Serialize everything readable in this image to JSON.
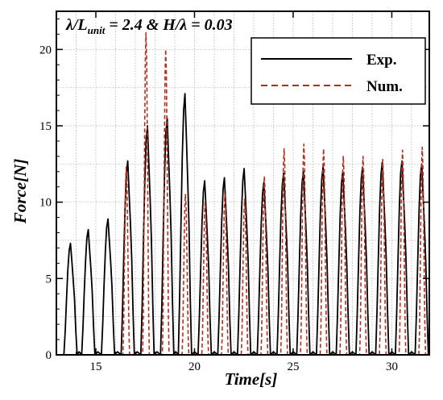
{
  "chart_data": {
    "type": "line",
    "title": "",
    "annotation": {
      "lambda_part": "λ/L",
      "sub": "unit",
      "rest": " = 2.4 & H/λ = 0.03"
    },
    "xlabel": "Time[s]",
    "ylabel": "Force[N]",
    "xlim": [
      13,
      31.9
    ],
    "ylim": [
      0,
      22.5
    ],
    "xticks": [
      15,
      20,
      25,
      30
    ],
    "yticks": [
      0,
      5,
      10,
      15,
      20
    ],
    "grid": true,
    "legend_position": "top-right",
    "colors": {
      "exp": "#000000",
      "num": "#b03020",
      "grid": "#aaaaaa"
    },
    "series": [
      {
        "name": "Exp.",
        "style": "solid",
        "peaks": [
          {
            "t": 13.7,
            "v": 7.3
          },
          {
            "t": 14.6,
            "v": 8.2
          },
          {
            "t": 15.6,
            "v": 8.9
          },
          {
            "t": 16.6,
            "v": 12.7
          },
          {
            "t": 17.6,
            "v": 15.0
          },
          {
            "t": 18.6,
            "v": 15.5
          },
          {
            "t": 19.5,
            "v": 17.1
          },
          {
            "t": 20.5,
            "v": 11.4
          },
          {
            "t": 21.5,
            "v": 11.6
          },
          {
            "t": 22.5,
            "v": 12.2
          },
          {
            "t": 23.5,
            "v": 11.3
          },
          {
            "t": 24.5,
            "v": 11.9
          },
          {
            "t": 25.5,
            "v": 12.0
          },
          {
            "t": 26.5,
            "v": 12.3
          },
          {
            "t": 27.5,
            "v": 12.0
          },
          {
            "t": 28.5,
            "v": 12.3
          },
          {
            "t": 29.5,
            "v": 12.6
          },
          {
            "t": 30.5,
            "v": 12.7
          },
          {
            "t": 31.5,
            "v": 12.5
          }
        ]
      },
      {
        "name": "Num.",
        "style": "dashed",
        "peaks": [
          {
            "t": 16.55,
            "v": 12.3
          },
          {
            "t": 17.55,
            "v": 21.1
          },
          {
            "t": 18.55,
            "v": 20.0
          },
          {
            "t": 19.55,
            "v": 10.5
          },
          {
            "t": 20.55,
            "v": 10.0
          },
          {
            "t": 21.55,
            "v": 10.5
          },
          {
            "t": 22.55,
            "v": 10.2
          },
          {
            "t": 23.55,
            "v": 11.7
          },
          {
            "t": 24.55,
            "v": 13.5
          },
          {
            "t": 25.55,
            "v": 13.8
          },
          {
            "t": 26.55,
            "v": 13.5
          },
          {
            "t": 27.55,
            "v": 13.0
          },
          {
            "t": 28.55,
            "v": 13.0
          },
          {
            "t": 29.55,
            "v": 12.8
          },
          {
            "t": 30.55,
            "v": 13.4
          },
          {
            "t": 31.55,
            "v": 13.6
          }
        ]
      }
    ]
  }
}
